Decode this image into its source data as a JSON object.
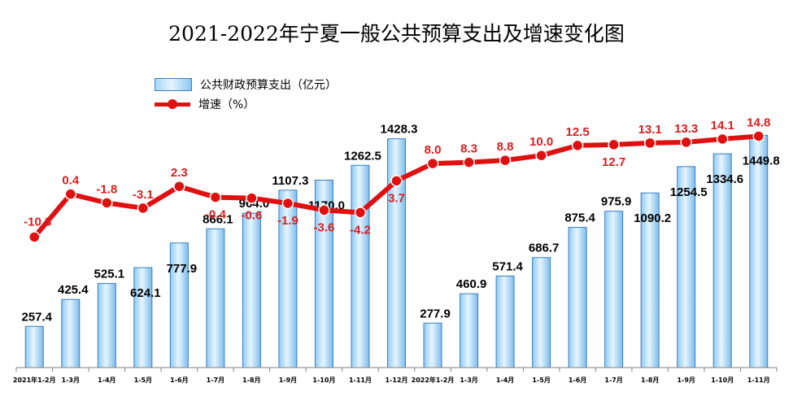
{
  "title": "2021-2022年宁夏一般公共预算支出及增速变化图",
  "chart_data": {
    "type": "bar+line",
    "categories": [
      "2021年1-2月",
      "1-3月",
      "1-4月",
      "1-5月",
      "1-6月",
      "1-7月",
      "1-8月",
      "1-9月",
      "1-10月",
      "1-11月",
      "1-12月",
      "2022年1-2月",
      "1-3月",
      "1-4月",
      "1-5月",
      "1-6月",
      "1-7月",
      "1-8月",
      "1-9月",
      "1-10月",
      "1-11月"
    ],
    "series": [
      {
        "name": "公共财政预算支出（亿元）",
        "type": "bar",
        "color": "#6fb7ea",
        "values": [
          257.4,
          425.4,
          525.1,
          624.1,
          777.9,
          866.1,
          964.0,
          1107.3,
          1170.0,
          1262.5,
          1428.3,
          277.9,
          460.9,
          571.4,
          686.7,
          875.4,
          975.9,
          1090.2,
          1254.5,
          1334.6,
          1449.8
        ],
        "labels": [
          "257.4",
          "425.4",
          "525.1",
          "624.1",
          "777.9",
          "866.1",
          "964.0",
          "1107.3",
          "1170.0",
          "1262.5",
          "1428.3",
          "277.9",
          "460.9",
          "571.4",
          "686.7",
          "875.4",
          "975.9",
          "1090.2",
          "1254.5",
          "1334.6",
          "1449.8"
        ]
      },
      {
        "name": "增速（%）",
        "type": "line",
        "color": "#e01010",
        "values": [
          -10.3,
          0.4,
          -1.8,
          -3.1,
          2.3,
          -0.4,
          -0.6,
          -1.9,
          -3.6,
          -4.2,
          3.7,
          8.0,
          8.3,
          8.8,
          10.0,
          12.5,
          12.7,
          13.1,
          13.3,
          14.1,
          14.8
        ],
        "labels": [
          "-10.3",
          "0.4",
          "-1.8",
          "-3.1",
          "2.3",
          "-0.4",
          "-0.6",
          "-1.9",
          "-3.6",
          "-4.2",
          "3.7",
          "8.0",
          "8.3",
          "8.8",
          "10.0",
          "12.5",
          "12.7",
          "13.1",
          "13.3",
          "14.1",
          "14.8"
        ]
      }
    ],
    "legend_position": "top-left",
    "grid": false
  }
}
